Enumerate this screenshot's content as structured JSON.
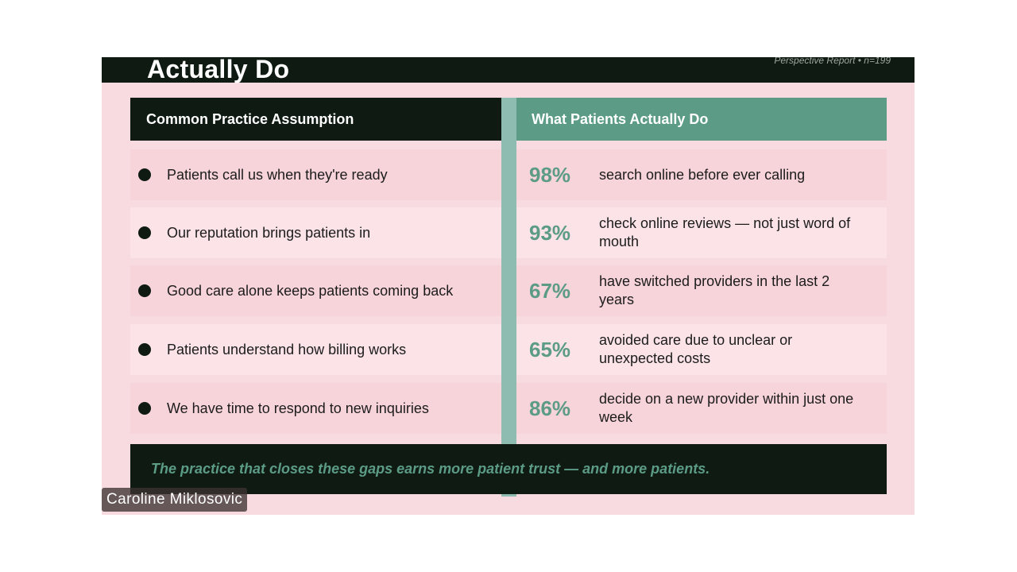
{
  "slide": {
    "title": "Actually Do",
    "source": "Perspective Report • n=199",
    "left_header": "Common Practice Assumption",
    "right_header": "What Patients Actually Do",
    "rows": [
      {
        "assumption": "Patients call us when they're ready",
        "stat": "98%",
        "reality": "search online before ever calling"
      },
      {
        "assumption": "Our reputation brings patients in",
        "stat": "93%",
        "reality": "check online reviews — not just word of mouth"
      },
      {
        "assumption": "Good care alone keeps patients coming back",
        "stat": "67%",
        "reality": "have switched providers in the last 2 years"
      },
      {
        "assumption": "Patients understand how billing works",
        "stat": "65%",
        "reality": "avoided care due to unclear or unexpected costs"
      },
      {
        "assumption": "We have time to respond to new inquiries",
        "stat": "86%",
        "reality": "decide on a new provider within just one week"
      }
    ],
    "footer": "The practice that closes these gaps earns more patient trust — and more patients."
  },
  "participant": {
    "name": "Caroline Miklosovic"
  },
  "colors": {
    "background": "#f8dbe0",
    "dark": "#0e1a12",
    "accent": "#5c9c87",
    "divider": "#8fbcb1"
  }
}
